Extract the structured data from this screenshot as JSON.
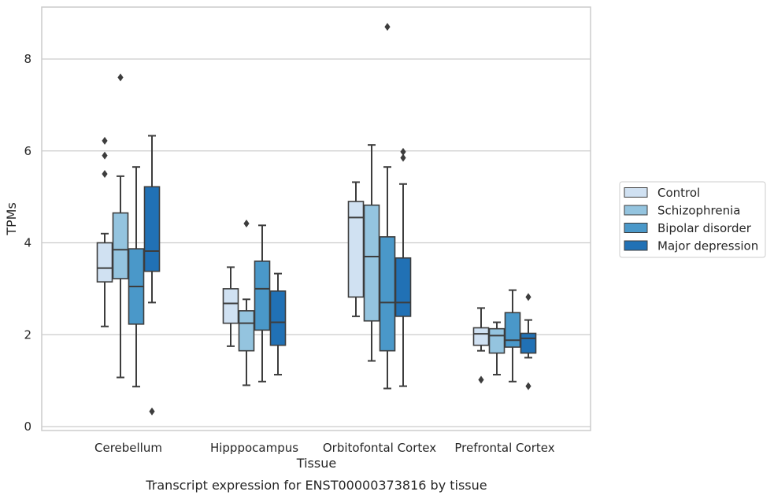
{
  "chart_data": {
    "type": "box",
    "xlabel": "Tissue",
    "ylabel": "TPMs",
    "caption": "Transcript expression for ENST00000373816 by tissue",
    "categories": [
      "Cerebellum",
      "Hipppocampus",
      "Orbitofontal Cortex",
      "Prefrontal Cortex"
    ],
    "ylim": [
      -0.1,
      9.1
    ],
    "yticks": [
      0,
      2,
      4,
      6,
      8
    ],
    "grid": true,
    "legend_position": "right",
    "series": [
      {
        "name": "Control",
        "color": "#d0e1f2",
        "boxes": [
          {
            "whislo": 2.18,
            "q1": 3.15,
            "med": 3.45,
            "q3": 4.0,
            "whishi": 4.2,
            "fliers": [
              5.5,
              5.9,
              6.22
            ]
          },
          {
            "whislo": 1.75,
            "q1": 2.25,
            "med": 2.68,
            "q3": 3.0,
            "whishi": 3.47,
            "fliers": []
          },
          {
            "whislo": 2.4,
            "q1": 2.82,
            "med": 4.55,
            "q3": 4.9,
            "whishi": 5.32,
            "fliers": []
          },
          {
            "whislo": 1.65,
            "q1": 1.77,
            "med": 2.02,
            "q3": 2.15,
            "whishi": 2.58,
            "fliers": [
              1.02
            ]
          }
        ]
      },
      {
        "name": "Schizophrenia",
        "color": "#94c4df",
        "boxes": [
          {
            "whislo": 1.07,
            "q1": 3.22,
            "med": 3.85,
            "q3": 4.65,
            "whishi": 5.45,
            "fliers": [
              7.6
            ]
          },
          {
            "whislo": 0.9,
            "q1": 1.65,
            "med": 2.25,
            "q3": 2.52,
            "whishi": 2.77,
            "fliers": [
              4.42
            ]
          },
          {
            "whislo": 1.43,
            "q1": 2.3,
            "med": 3.7,
            "q3": 4.82,
            "whishi": 6.13,
            "fliers": []
          },
          {
            "whislo": 1.13,
            "q1": 1.6,
            "med": 1.98,
            "q3": 2.13,
            "whishi": 2.27,
            "fliers": []
          }
        ]
      },
      {
        "name": "Bipolar disorder",
        "color": "#4a98c9",
        "boxes": [
          {
            "whislo": 0.87,
            "q1": 2.23,
            "med": 3.05,
            "q3": 3.87,
            "whishi": 5.65,
            "fliers": []
          },
          {
            "whislo": 0.98,
            "q1": 2.1,
            "med": 3.0,
            "q3": 3.6,
            "whishi": 4.38,
            "fliers": []
          },
          {
            "whislo": 0.83,
            "q1": 1.65,
            "med": 2.7,
            "q3": 4.13,
            "whishi": 5.65,
            "fliers": [
              8.7
            ]
          },
          {
            "whislo": 0.98,
            "q1": 1.73,
            "med": 1.88,
            "q3": 2.48,
            "whishi": 2.97,
            "fliers": []
          }
        ]
      },
      {
        "name": "Major depression",
        "color": "#2171b5",
        "boxes": [
          {
            "whislo": 2.7,
            "q1": 3.38,
            "med": 3.82,
            "q3": 5.22,
            "whishi": 6.33,
            "fliers": [
              0.33
            ]
          },
          {
            "whislo": 1.13,
            "q1": 1.77,
            "med": 2.27,
            "q3": 2.95,
            "whishi": 3.33,
            "fliers": []
          },
          {
            "whislo": 0.88,
            "q1": 2.4,
            "med": 2.7,
            "q3": 3.67,
            "whishi": 5.28,
            "fliers": [
              5.85,
              5.98
            ]
          },
          {
            "whislo": 1.5,
            "q1": 1.6,
            "med": 1.92,
            "q3": 2.03,
            "whishi": 2.32,
            "fliers": [
              0.88,
              2.82
            ]
          }
        ]
      }
    ]
  }
}
